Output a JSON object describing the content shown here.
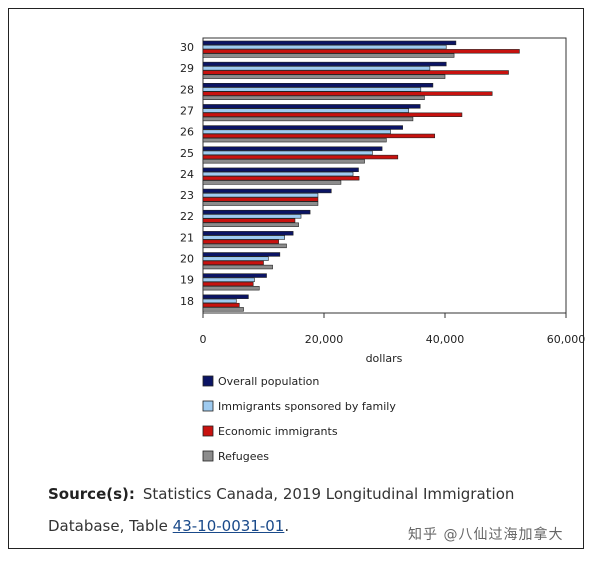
{
  "chart_data": {
    "type": "bar",
    "orientation": "horizontal",
    "categories": [
      "18",
      "19",
      "20",
      "21",
      "22",
      "23",
      "24",
      "25",
      "26",
      "27",
      "28",
      "29",
      "30"
    ],
    "series": [
      {
        "name": "Overall population",
        "color": "#0b1464",
        "values": [
          7500,
          10500,
          12700,
          14900,
          17700,
          21200,
          25700,
          29600,
          33000,
          35900,
          38000,
          40200,
          41800
        ]
      },
      {
        "name": "Immigrants sponsored by family",
        "color": "#9fcbf0",
        "values": [
          5500,
          8500,
          10800,
          13500,
          16200,
          19000,
          24800,
          28000,
          31000,
          34000,
          36000,
          37500,
          40200
        ]
      },
      {
        "name": "Economic immigrants",
        "color": "#c8120f",
        "values": [
          6000,
          8300,
          10000,
          12500,
          15200,
          19000,
          25800,
          32200,
          38300,
          42800,
          47800,
          50500,
          52300
        ]
      },
      {
        "name": "Refugees",
        "color": "#8c8c8c",
        "values": [
          6700,
          9300,
          11500,
          13800,
          15800,
          19000,
          22800,
          26700,
          30300,
          34700,
          36600,
          40000,
          41500
        ]
      }
    ],
    "xlim": [
      0,
      60000
    ],
    "xticks": [
      "0",
      "20,000",
      "40,000",
      "60,000"
    ],
    "xlabel": "dollars",
    "legend_position": "bottom"
  },
  "source": {
    "label": "Source(s):",
    "text_before": "Statistics Canada, 2019 Longitudinal Immigration Database, Table ",
    "link_text": "43-10-0031-01",
    "text_after": "."
  },
  "watermark": "知乎 @八仙过海加拿大"
}
